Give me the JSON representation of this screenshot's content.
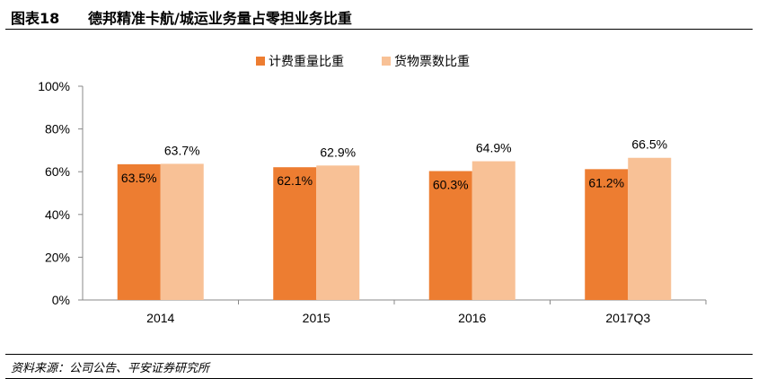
{
  "figure": {
    "number": "图表18",
    "title": "德邦精准卡航/城运业务量占零担业务比重"
  },
  "source": "资料来源：公司公告、平安证券研究所",
  "colors": {
    "series1": "#ed7d31",
    "series2": "#f8c196"
  },
  "chart_data": {
    "type": "bar",
    "categories": [
      "2014",
      "2015",
      "2016",
      "2017Q3"
    ],
    "series": [
      {
        "name": "计费重量比重",
        "values": [
          63.5,
          62.1,
          60.3,
          61.2
        ],
        "labels": [
          "63.5%",
          "62.1%",
          "60.3%",
          "61.2%"
        ]
      },
      {
        "name": "货物票数比重",
        "values": [
          63.7,
          62.9,
          64.9,
          66.5
        ],
        "labels": [
          "63.7%",
          "62.9%",
          "64.9%",
          "66.5%"
        ]
      }
    ],
    "ylim": [
      0,
      100
    ],
    "yticks": [
      "0%",
      "20%",
      "40%",
      "60%",
      "80%",
      "100%"
    ],
    "legend": "top-center",
    "grid": false
  }
}
